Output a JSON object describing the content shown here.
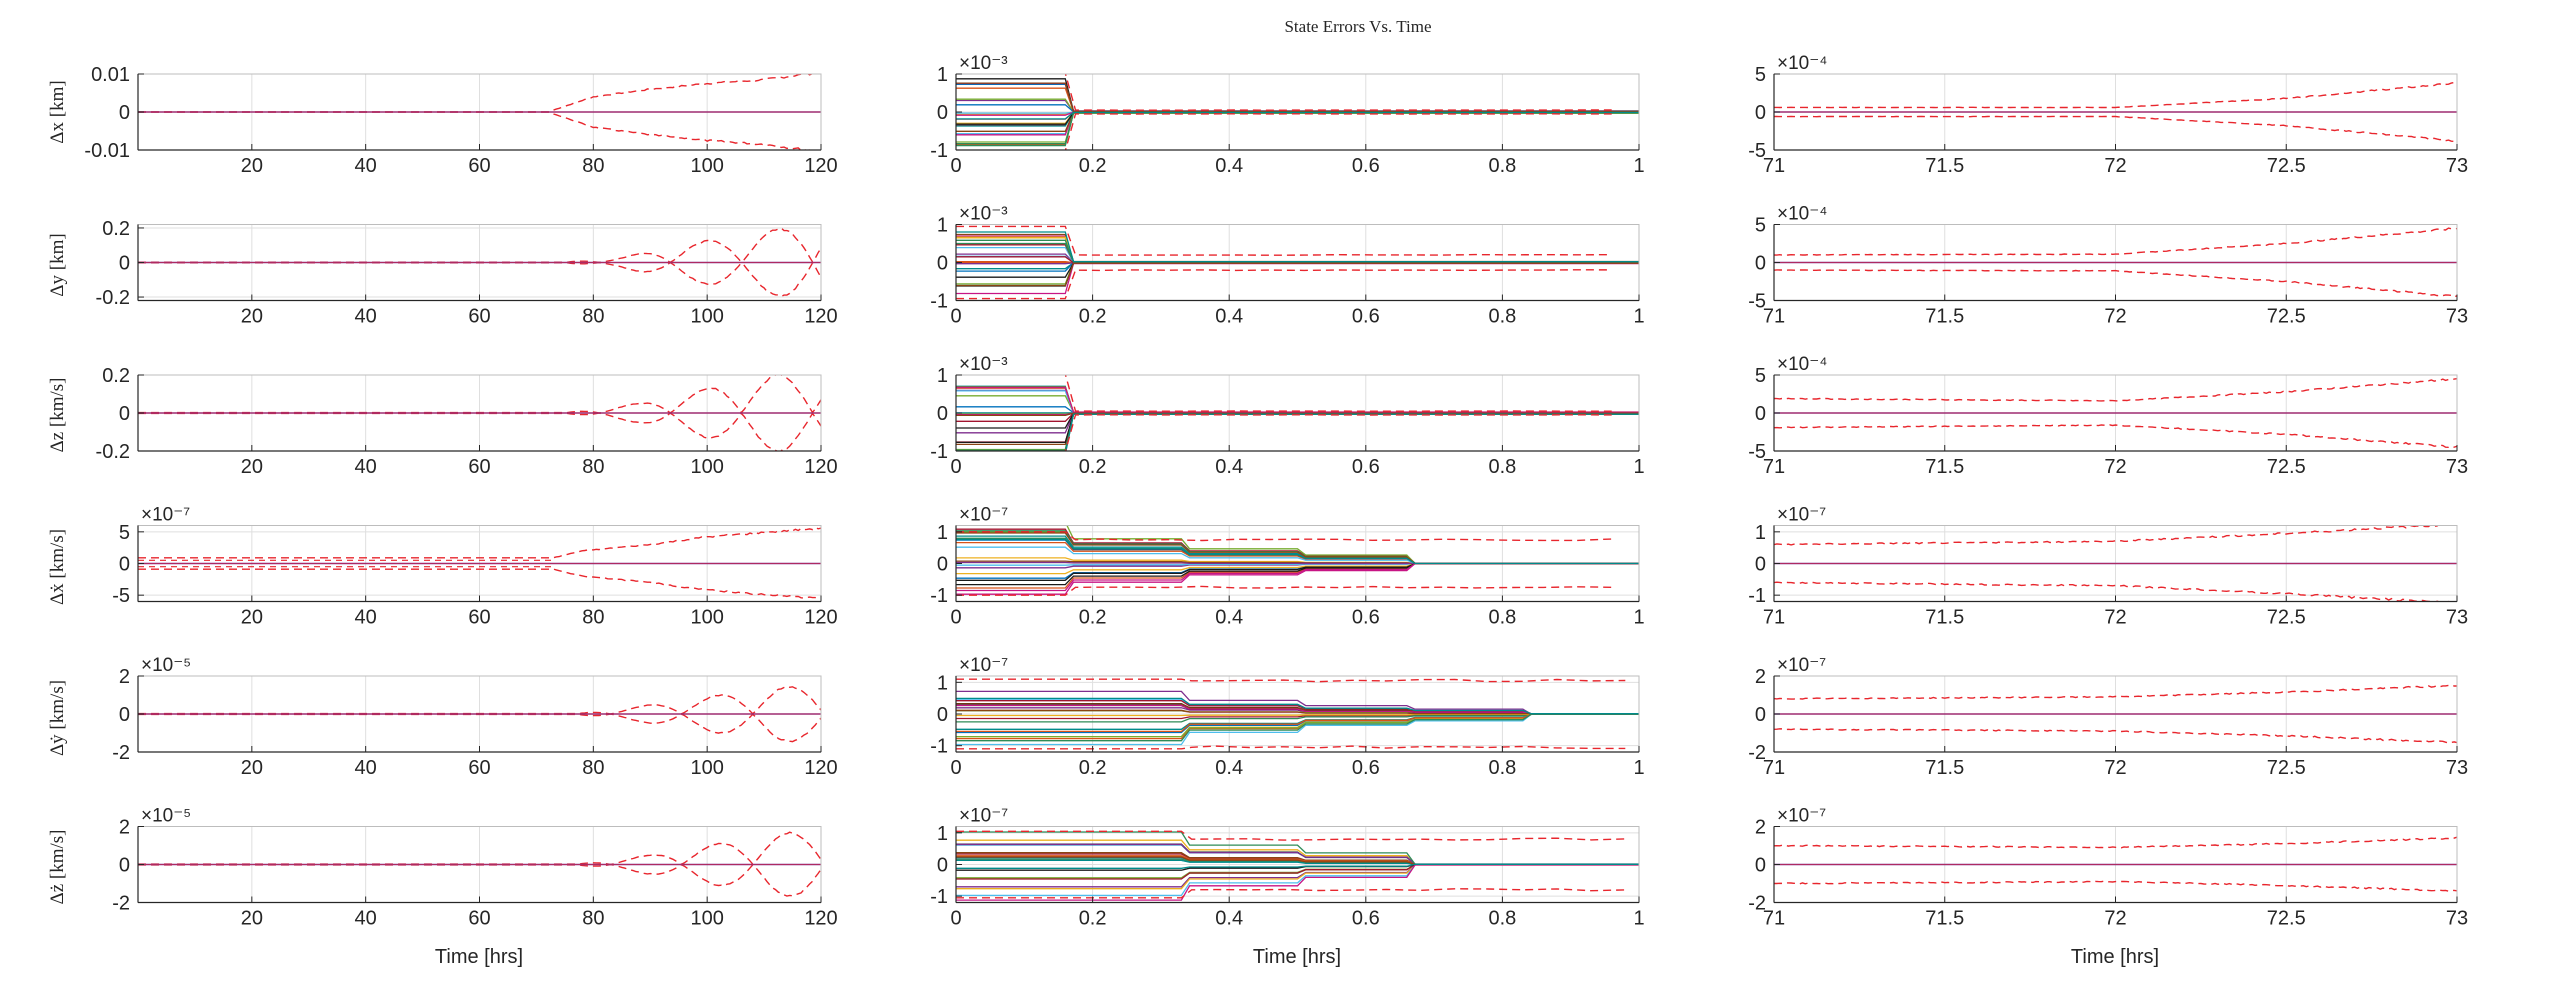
{
  "figure": {
    "title": "State Errors Vs. Time",
    "xlabel": "Time [hrs]",
    "trace_colors": [
      "#0072BD",
      "#D95319",
      "#EDB120",
      "#7E2F8E",
      "#77AC30",
      "#4DBEEE",
      "#A2142F",
      "#1A1A1A",
      "#2E8B57",
      "#C71585",
      "#8B4513",
      "#008B8B"
    ],
    "bound_color": "#E8262D",
    "zero_line_color": "#7E2F8E",
    "axis_color": "#262626",
    "grid_color": "#DFDFDF"
  },
  "rows": [
    {
      "ylabel": "Δx [km]",
      "scale": "×10⁻³",
      "fast_scale": "×10⁻⁴"
    },
    {
      "ylabel": "Δy [km]",
      "scale": "×10⁻³",
      "fast_scale": "×10⁻⁴"
    },
    {
      "ylabel": "Δz [km/s]",
      "scale": "×10⁻³",
      "fast_scale": "×10⁻⁴"
    },
    {
      "ylabel": "Δẋ [km/s]",
      "left_scale": "×10⁻⁷",
      "scale": "×10⁻⁷",
      "fast_scale": "×10⁻⁷"
    },
    {
      "ylabel": "Δẏ [km/s]",
      "left_scale": "×10⁻⁵",
      "scale": "×10⁻⁷",
      "fast_scale": "×10⁻⁷"
    },
    {
      "ylabel": "Δż [km/s]",
      "left_scale": "×10⁻⁵",
      "scale": "×10⁻⁷",
      "fast_scale": "×10⁻⁷"
    }
  ],
  "chart_data": [
    {
      "type": "line",
      "id": "c-0-0",
      "xlim": [
        0,
        120
      ],
      "ylim": [
        -0.01,
        0.01
      ],
      "xticks": [
        20,
        40,
        60,
        80,
        100,
        120
      ],
      "xticklabels": [
        "20",
        "40",
        "60",
        "80",
        "100",
        "120"
      ],
      "yticks": [
        -0.01,
        0,
        0.01
      ],
      "yticklabels": [
        "-0.01",
        "0",
        "0.01"
      ],
      "grid": true,
      "bounds": {
        "t0": 73,
        "pre": 5e-05,
        "env": [
          [
            73,
            0.0005
          ],
          [
            80,
            0.004
          ],
          [
            90,
            0.006
          ],
          [
            100,
            0.0075
          ],
          [
            110,
            0.0085
          ],
          [
            120,
            0.0105
          ]
        ],
        "wavy": false
      }
    },
    {
      "type": "line",
      "id": "c-0-1",
      "xlim": [
        0,
        1
      ],
      "ylim": [
        -1,
        1
      ],
      "xticks": [
        0,
        0.2,
        0.4,
        0.6,
        0.8,
        1
      ],
      "xticklabels": [
        "0",
        "0.2",
        "0.4",
        "0.6",
        "0.8",
        "1"
      ],
      "yticks": [
        -1,
        0,
        1
      ],
      "yticklabels": [
        "-1",
        "0",
        "1"
      ],
      "grid": true,
      "scale_label": "×10⁻³",
      "steps": [
        0.16
      ],
      "bound_levels": [
        1.02,
        0.05
      ],
      "trace_amp": 0.95,
      "n_traces": 24
    },
    {
      "type": "line",
      "id": "c-0-2",
      "xlim": [
        71,
        73
      ],
      "ylim": [
        -5,
        5
      ],
      "xticks": [
        71,
        71.5,
        72,
        72.5,
        73
      ],
      "xticklabels": [
        "71",
        "71.5",
        "72",
        "72.5",
        "73"
      ],
      "yticks": [
        -5,
        0,
        5
      ],
      "yticklabels": [
        "-5",
        "0",
        "5"
      ],
      "grid": true,
      "scale_label": "×10⁻⁴",
      "bounds": {
        "env": [
          [
            71,
            0.6
          ],
          [
            72,
            0.6
          ],
          [
            72.5,
            1.8
          ],
          [
            73,
            3.8
          ]
        ]
      }
    },
    {
      "type": "line",
      "id": "c-1-0",
      "xlim": [
        0,
        120
      ],
      "ylim": [
        -0.22,
        0.22
      ],
      "xticks": [
        20,
        40,
        60,
        80,
        100,
        120
      ],
      "xticklabels": [
        "20",
        "40",
        "60",
        "80",
        "100",
        "120"
      ],
      "yticks": [
        -0.2,
        0,
        0.2
      ],
      "yticklabels": [
        "-0.2",
        "0",
        "0.2"
      ],
      "grid": true,
      "bounds": {
        "t0": 76,
        "pre": 0.002,
        "env": [
          [
            76,
            0.005
          ],
          [
            85,
            0.03
          ],
          [
            95,
            0.1
          ],
          [
            107,
            0.16
          ],
          [
            120,
            0.24
          ]
        ],
        "wavy": true,
        "period": 12.5
      }
    },
    {
      "type": "line",
      "id": "c-1-1",
      "xlim": [
        0,
        1
      ],
      "ylim": [
        -1,
        1
      ],
      "xticks": [
        0,
        0.2,
        0.4,
        0.6,
        0.8,
        1
      ],
      "xticklabels": [
        "0",
        "0.2",
        "0.4",
        "0.6",
        "0.8",
        "1"
      ],
      "yticks": [
        -1,
        0,
        1
      ],
      "yticklabels": [
        "-1",
        "0",
        "1"
      ],
      "grid": true,
      "scale_label": "×10⁻³",
      "steps": [
        0.16
      ],
      "bound_levels": [
        0.95,
        0.2
      ],
      "trace_amp": 0.85,
      "n_traces": 24
    },
    {
      "type": "line",
      "id": "c-1-2",
      "xlim": [
        71,
        73
      ],
      "ylim": [
        -5,
        5
      ],
      "xticks": [
        71,
        71.5,
        72,
        72.5,
        73
      ],
      "xticklabels": [
        "71",
        "71.5",
        "72",
        "72.5",
        "73"
      ],
      "yticks": [
        -5,
        0,
        5
      ],
      "yticklabels": [
        "-5",
        "0",
        "5"
      ],
      "grid": true,
      "scale_label": "×10⁻⁴",
      "bounds": {
        "env": [
          [
            71,
            1.0
          ],
          [
            72,
            1.1
          ],
          [
            72.5,
            2.5
          ],
          [
            73,
            4.5
          ]
        ]
      }
    },
    {
      "type": "line",
      "id": "c-2-0",
      "xlim": [
        0,
        120
      ],
      "ylim": [
        -0.2,
        0.2
      ],
      "xticks": [
        20,
        40,
        60,
        80,
        100,
        120
      ],
      "xticklabels": [
        "20",
        "40",
        "60",
        "80",
        "100",
        "120"
      ],
      "yticks": [
        -0.2,
        0,
        0.2
      ],
      "yticklabels": [
        "-0.2",
        "0",
        "0.2"
      ],
      "grid": true,
      "bounds": {
        "t0": 76,
        "pre": 0.002,
        "env": [
          [
            76,
            0.005
          ],
          [
            88,
            0.05
          ],
          [
            100,
            0.13
          ],
          [
            112,
            0.2
          ],
          [
            120,
            0.2
          ]
        ],
        "wavy": true,
        "period": 12.5
      }
    },
    {
      "type": "line",
      "id": "c-2-1",
      "xlim": [
        0,
        1
      ],
      "ylim": [
        -1,
        1
      ],
      "xticks": [
        0,
        0.2,
        0.4,
        0.6,
        0.8,
        1
      ],
      "xticklabels": [
        "0",
        "0.2",
        "0.4",
        "0.6",
        "0.8",
        "1"
      ],
      "yticks": [
        -1,
        0,
        1
      ],
      "yticklabels": [
        "-1",
        "0",
        "1"
      ],
      "grid": true,
      "scale_label": "×10⁻³",
      "steps": [
        0.16
      ],
      "bound_levels": [
        1.02,
        0.05
      ],
      "trace_amp": 1.1,
      "n_traces": 24
    },
    {
      "type": "line",
      "id": "c-2-2",
      "xlim": [
        71,
        73
      ],
      "ylim": [
        -5,
        5
      ],
      "xticks": [
        71,
        71.5,
        72,
        72.5,
        73
      ],
      "xticklabels": [
        "71",
        "71.5",
        "72",
        "72.5",
        "73"
      ],
      "yticks": [
        -5,
        0,
        5
      ],
      "yticklabels": [
        "-5",
        "0",
        "5"
      ],
      "grid": true,
      "scale_label": "×10⁻⁴",
      "bounds": {
        "env": [
          [
            71,
            1.9
          ],
          [
            72,
            1.6
          ],
          [
            72.5,
            2.8
          ],
          [
            73,
            4.5
          ]
        ]
      }
    },
    {
      "type": "line",
      "id": "c-3-0",
      "xlim": [
        0,
        120
      ],
      "ylim": [
        -6,
        6
      ],
      "xticks": [
        20,
        40,
        60,
        80,
        100,
        120
      ],
      "xticklabels": [
        "20",
        "40",
        "60",
        "80",
        "100",
        "120"
      ],
      "yticks": [
        -5,
        0,
        5
      ],
      "yticklabels": [
        "-5",
        "0",
        "5"
      ],
      "grid": true,
      "scale_label": "×10⁻⁷",
      "bounds": {
        "t0": 73,
        "pre": 0.9,
        "pre2": 0.5,
        "env": [
          [
            73,
            0.9
          ],
          [
            78,
            2.0
          ],
          [
            90,
            3.0
          ],
          [
            100,
            4.2
          ],
          [
            120,
            5.6
          ]
        ],
        "wavy": false
      }
    },
    {
      "type": "line",
      "id": "c-3-1",
      "xlim": [
        0,
        1
      ],
      "ylim": [
        -1.2,
        1.2
      ],
      "xticks": [
        0,
        0.2,
        0.4,
        0.6,
        0.8,
        1
      ],
      "xticklabels": [
        "0",
        "0.2",
        "0.4",
        "0.6",
        "0.8",
        "1"
      ],
      "yticks": [
        -1,
        0,
        1
      ],
      "yticklabels": [
        "-1",
        "0",
        "1"
      ],
      "grid": true,
      "scale_label": "×10⁻⁷",
      "steps": [
        0.16,
        0.33,
        0.5,
        0.66
      ],
      "bound_levels": [
        1.0,
        0.75
      ],
      "trace_amp": 1.4,
      "n_traces": 24
    },
    {
      "type": "line",
      "id": "c-3-2",
      "xlim": [
        71,
        73
      ],
      "ylim": [
        -1.2,
        1.2
      ],
      "xticks": [
        71,
        71.5,
        72,
        72.5,
        73
      ],
      "xticklabels": [
        "71",
        "71.5",
        "72",
        "72.5",
        "73"
      ],
      "yticks": [
        -1,
        0,
        1
      ],
      "yticklabels": [
        "-1",
        "0",
        "1"
      ],
      "grid": true,
      "scale_label": "×10⁻⁷",
      "bounds": {
        "env": [
          [
            71,
            0.6
          ],
          [
            72,
            0.7
          ],
          [
            72.5,
            0.95
          ],
          [
            73,
            1.25
          ]
        ]
      }
    },
    {
      "type": "line",
      "id": "c-4-0",
      "xlim": [
        0,
        120
      ],
      "ylim": [
        -2,
        2
      ],
      "xticks": [
        20,
        40,
        60,
        80,
        100,
        120
      ],
      "xticklabels": [
        "20",
        "40",
        "60",
        "80",
        "100",
        "120"
      ],
      "yticks": [
        -2,
        0,
        2
      ],
      "yticklabels": [
        "-2",
        "0",
        "2"
      ],
      "grid": true,
      "scale_label": "×10⁻⁵",
      "bounds": {
        "t0": 78,
        "pre": 0.02,
        "env": [
          [
            78,
            0.05
          ],
          [
            88,
            0.4
          ],
          [
            100,
            0.9
          ],
          [
            112,
            1.4
          ],
          [
            120,
            1.5
          ]
        ],
        "wavy": true,
        "period": 12.5
      }
    },
    {
      "type": "line",
      "id": "c-4-1",
      "xlim": [
        0,
        1
      ],
      "ylim": [
        -1.2,
        1.2
      ],
      "xticks": [
        0,
        0.2,
        0.4,
        0.6,
        0.8,
        1
      ],
      "xticklabels": [
        "0",
        "0.2",
        "0.4",
        "0.6",
        "0.8",
        "1"
      ],
      "yticks": [
        -1,
        0,
        1
      ],
      "yticklabels": [
        "-1",
        "0",
        "1"
      ],
      "grid": true,
      "scale_label": "×10⁻⁷",
      "steps": [
        0.33,
        0.5,
        0.66,
        0.83
      ],
      "bound_levels": [
        1.1,
        1.05
      ],
      "trace_amp": 1.1,
      "n_traces": 24
    },
    {
      "type": "line",
      "id": "c-4-2",
      "xlim": [
        71,
        73
      ],
      "ylim": [
        -2,
        2
      ],
      "xticks": [
        71,
        71.5,
        72,
        72.5,
        73
      ],
      "xticklabels": [
        "71",
        "71.5",
        "72",
        "72.5",
        "73"
      ],
      "yticks": [
        -2,
        0,
        2
      ],
      "yticklabels": [
        "-2",
        "0",
        "2"
      ],
      "grid": true,
      "scale_label": "×10⁻⁷",
      "bounds": {
        "env": [
          [
            71,
            0.8
          ],
          [
            72,
            0.9
          ],
          [
            72.5,
            1.15
          ],
          [
            73,
            1.5
          ]
        ]
      }
    },
    {
      "type": "line",
      "id": "c-5-0",
      "xlim": [
        0,
        120
      ],
      "ylim": [
        -2,
        2
      ],
      "xticks": [
        20,
        40,
        60,
        80,
        100,
        120
      ],
      "xticklabels": [
        "20",
        "40",
        "60",
        "80",
        "100",
        "120"
      ],
      "yticks": [
        -2,
        0,
        2
      ],
      "yticklabels": [
        "-2",
        "0",
        "2"
      ],
      "grid": true,
      "scale_label": "×10⁻⁵",
      "bounds": {
        "t0": 78,
        "pre": 0.02,
        "env": [
          [
            78,
            0.05
          ],
          [
            90,
            0.5
          ],
          [
            100,
            1.0
          ],
          [
            112,
            1.6
          ],
          [
            120,
            1.8
          ]
        ],
        "wavy": true,
        "period": 12.5
      }
    },
    {
      "type": "line",
      "id": "c-5-1",
      "xlim": [
        0,
        1
      ],
      "ylim": [
        -1.2,
        1.2
      ],
      "xticks": [
        0,
        0.2,
        0.4,
        0.6,
        0.8,
        1
      ],
      "xticklabels": [
        "0",
        "0.2",
        "0.4",
        "0.6",
        "0.8",
        "1"
      ],
      "yticks": [
        -1,
        0,
        1
      ],
      "yticklabels": [
        "-1",
        "0",
        "1"
      ],
      "grid": true,
      "scale_label": "×10⁻⁷",
      "steps": [
        0.33,
        0.5,
        0.66
      ],
      "bound_levels": [
        1.05,
        0.8
      ],
      "trace_amp": 1.15,
      "n_traces": 24
    },
    {
      "type": "line",
      "id": "c-5-2",
      "xlim": [
        71,
        73
      ],
      "ylim": [
        -2,
        2
      ],
      "xticks": [
        71,
        71.5,
        72,
        72.5,
        73
      ],
      "xticklabels": [
        "71",
        "71.5",
        "72",
        "72.5",
        "73"
      ],
      "yticks": [
        -2,
        0,
        2
      ],
      "yticklabels": [
        "-2",
        "0",
        "2"
      ],
      "grid": true,
      "scale_label": "×10⁻⁷",
      "bounds": {
        "env": [
          [
            71,
            1.0
          ],
          [
            72,
            0.9
          ],
          [
            72.5,
            1.1
          ],
          [
            73,
            1.4
          ]
        ]
      }
    }
  ]
}
